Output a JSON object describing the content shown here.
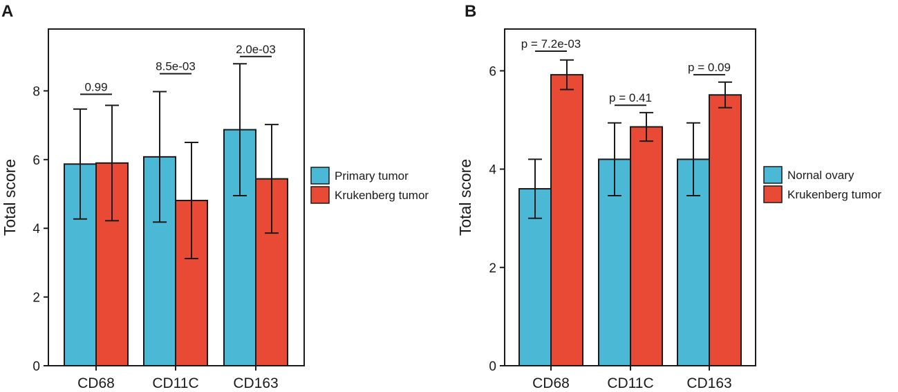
{
  "chart_data": [
    {
      "panel": "A",
      "type": "bar",
      "title": "",
      "xlabel": "",
      "ylabel": "Total score",
      "ylim": [
        0,
        9.8
      ],
      "yticks": [
        0,
        2,
        4,
        6,
        8
      ],
      "categories": [
        "CD68",
        "CD11C",
        "CD163"
      ],
      "series": [
        {
          "name": "Primary tumor",
          "color": "#4bb8d6",
          "values": [
            5.87,
            6.08,
            6.87
          ],
          "errors": [
            1.6,
            1.9,
            1.92
          ]
        },
        {
          "name": "Krukenberg tumor",
          "color": "#e84a35",
          "values": [
            5.9,
            4.81,
            5.44
          ],
          "errors": [
            1.68,
            1.69,
            1.58
          ]
        }
      ],
      "annotations": [
        {
          "label": "0.99",
          "category": 0,
          "y": 7.9
        },
        {
          "label": "8.5e-03",
          "category": 1,
          "y": 8.5
        },
        {
          "label": "2.0e-03",
          "category": 2,
          "y": 9.0
        }
      ],
      "legend": "right"
    },
    {
      "panel": "B",
      "type": "bar",
      "title": "",
      "xlabel": "",
      "ylabel": "Total score",
      "ylim": [
        0,
        6.85
      ],
      "yticks": [
        0,
        2,
        4,
        6
      ],
      "categories": [
        "CD68",
        "CD11C",
        "CD163"
      ],
      "series": [
        {
          "name": "Nornal ovary",
          "color": "#4bb8d6",
          "values": [
            3.6,
            4.2,
            4.2
          ],
          "errors": [
            0.6,
            0.74,
            0.74
          ]
        },
        {
          "name": "Krukenberg tumor",
          "color": "#e84a35",
          "values": [
            5.92,
            4.86,
            5.51
          ],
          "errors": [
            0.3,
            0.29,
            0.26
          ]
        }
      ],
      "annotations": [
        {
          "label": "p = 7.2e-03",
          "category": 0,
          "y": 6.4
        },
        {
          "label": "p = 0.41",
          "category": 1,
          "y": 5.3
        },
        {
          "label": "p = 0.09",
          "category": 2,
          "y": 5.92
        }
      ],
      "legend": "right"
    }
  ]
}
